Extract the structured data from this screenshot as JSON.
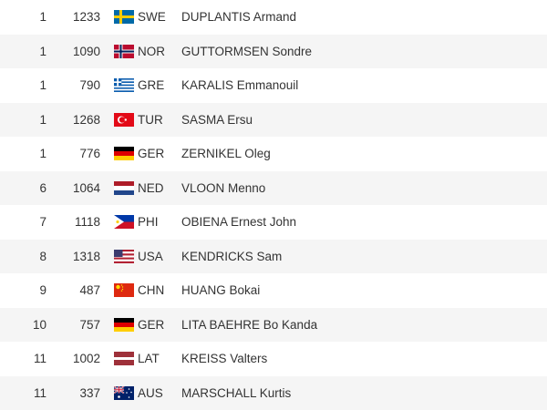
{
  "table": {
    "rows": [
      [
        1,
        1233,
        "SWE",
        "DUPLANTIS Armand"
      ],
      [
        1,
        1090,
        "NOR",
        "GUTTORMSEN Sondre"
      ],
      [
        1,
        790,
        "GRE",
        "KARALIS Emmanouil"
      ],
      [
        1,
        1268,
        "TUR",
        "SASMA Ersu"
      ],
      [
        1,
        776,
        "GER",
        "ZERNIKEL Oleg"
      ],
      [
        6,
        1064,
        "NED",
        "VLOON Menno"
      ],
      [
        7,
        1118,
        "PHI",
        "OBIENA Ernest John"
      ],
      [
        8,
        1318,
        "USA",
        "KENDRICKS Sam"
      ],
      [
        9,
        487,
        "CHN",
        "HUANG Bokai"
      ],
      [
        10,
        757,
        "GER",
        "LITA BAEHRE Bo Kanda"
      ],
      [
        11,
        1002,
        "LAT",
        "KREISS Valters"
      ],
      [
        11,
        337,
        "AUS",
        "MARSCHALL Kurtis"
      ]
    ]
  }
}
